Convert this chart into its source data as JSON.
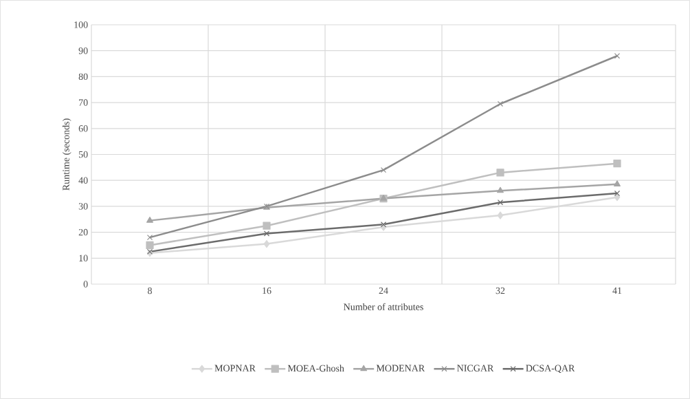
{
  "chart_data": {
    "type": "line",
    "xlabel": "Number of attributes",
    "ylabel": "Runtime (seconds)",
    "categories": [
      "8",
      "16",
      "24",
      "32",
      "41"
    ],
    "series": [
      {
        "name": "MOPNAR",
        "color": "#d9d9d9",
        "marker": "diamond",
        "values": [
          12,
          15.5,
          22,
          26.5,
          33.5
        ]
      },
      {
        "name": "MOEA-Ghosh",
        "color": "#bfbfbf",
        "marker": "square",
        "values": [
          15,
          22.5,
          33,
          43,
          46.5
        ]
      },
      {
        "name": "MODENAR",
        "color": "#a5a5a5",
        "marker": "triangle",
        "values": [
          24.5,
          29.5,
          33,
          36,
          38.5
        ]
      },
      {
        "name": "NICGAR",
        "color": "#8c8c8c",
        "marker": "cross",
        "values": [
          18,
          30,
          44,
          69.5,
          88
        ]
      },
      {
        "name": "DCSA-QAR",
        "color": "#6b6b6b",
        "marker": "cross",
        "values": [
          12.5,
          19.5,
          23,
          31.5,
          35
        ]
      }
    ],
    "ylim": [
      0,
      100
    ],
    "yticks": [
      0,
      10,
      20,
      30,
      40,
      50,
      60,
      70,
      80,
      90,
      100
    ],
    "grid": true,
    "legend": "bottom",
    "line_style": "solid"
  }
}
